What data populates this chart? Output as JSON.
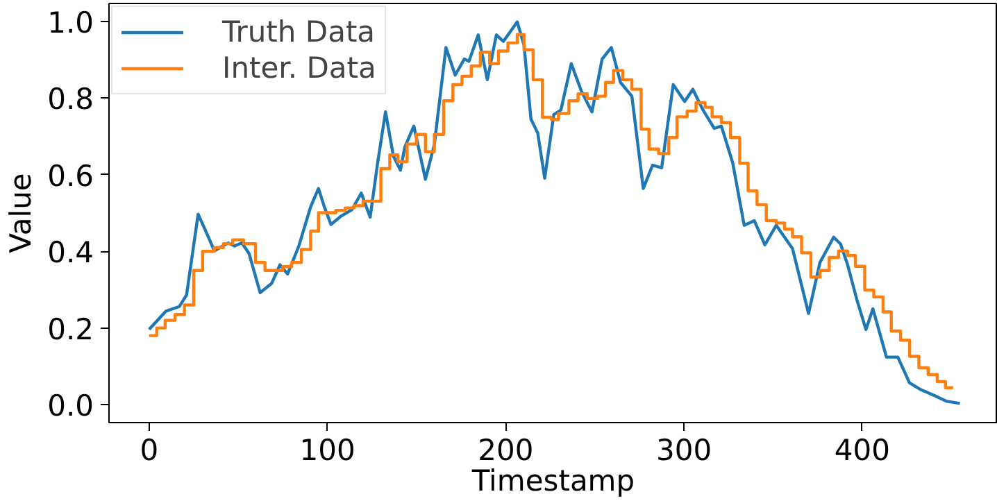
{
  "chart_data": {
    "type": "line",
    "xlabel": "Timestamp",
    "ylabel": "Value",
    "xlim": [
      -22.5,
      476
    ],
    "ylim": [
      -0.047,
      1.047
    ],
    "xticks": [
      0,
      100,
      200,
      300,
      400
    ],
    "yticks": [
      {
        "value": 0,
        "label": "0.0"
      },
      {
        "value": 0.2,
        "label": "0.2"
      },
      {
        "value": 0.4,
        "label": "0.4"
      },
      {
        "value": 0.6,
        "label": "0.6"
      },
      {
        "value": 0.8,
        "label": "0.8"
      },
      {
        "value": 1,
        "label": "1.0"
      }
    ],
    "grid": false,
    "legend": "top left",
    "series": [
      {
        "name": "Truth Data",
        "color": "#1f77b4",
        "x": [
          0,
          9.5,
          17,
          21,
          27.5,
          32.7,
          36.6,
          44.3,
          48,
          52,
          56,
          62.3,
          68.7,
          73.4,
          77.7,
          84,
          90.6,
          95,
          98.3,
          102,
          107.4,
          113.8,
          119,
          124,
          128,
          132.6,
          137,
          141,
          143.4,
          148.5,
          155,
          160,
          166.5,
          171.7,
          176.8,
          179.4,
          184.6,
          189.7,
          194.8,
          198.7,
          206.5,
          210.3,
          214.2,
          218,
          221.9,
          227,
          231,
          236.8,
          242.5,
          248.4,
          254.1,
          259.3,
          264.4,
          270.8,
          277.2,
          282.4,
          287.5,
          294,
          300.4,
          305,
          310.7,
          317,
          321,
          327.4,
          333.8,
          339.5,
          345.4,
          351.8,
          360.9,
          369.9,
          376.3,
          384,
          387.9,
          391.8,
          397,
          402.1,
          406,
          413.6,
          420,
          426.5,
          432.9,
          440.7,
          447.1,
          454.8
        ],
        "values": [
          0.196,
          0.244,
          0.256,
          0.286,
          0.497,
          0.443,
          0.401,
          0.422,
          0.414,
          0.422,
          0.395,
          0.292,
          0.316,
          0.365,
          0.341,
          0.414,
          0.516,
          0.564,
          0.516,
          0.47,
          0.491,
          0.509,
          0.552,
          0.489,
          0.625,
          0.764,
          0.649,
          0.612,
          0.672,
          0.727,
          0.588,
          0.679,
          0.932,
          0.86,
          0.902,
          0.896,
          0.965,
          0.848,
          0.965,
          0.948,
          0.999,
          0.938,
          0.745,
          0.709,
          0.591,
          0.757,
          0.769,
          0.89,
          0.818,
          0.764,
          0.902,
          0.932,
          0.841,
          0.805,
          0.564,
          0.625,
          0.618,
          0.835,
          0.791,
          0.823,
          0.769,
          0.721,
          0.727,
          0.63,
          0.468,
          0.48,
          0.417,
          0.468,
          0.407,
          0.238,
          0.371,
          0.437,
          0.419,
          0.365,
          0.274,
          0.196,
          0.25,
          0.124,
          0.124,
          0.057,
          0.039,
          0.023,
          0.009,
          0.003
        ]
      },
      {
        "name": "Inter. Data",
        "color": "#ff7f0e",
        "type": "step",
        "x": [
          0,
          4.3,
          9,
          14.6,
          19.8,
          25,
          30,
          36.6,
          41.7,
          46.9,
          53,
          59.7,
          65,
          75,
          80,
          85.4,
          90.6,
          95,
          104.8,
          110,
          115,
          120,
          130,
          135,
          139.5,
          144.7,
          150,
          155,
          160,
          165.2,
          170.4,
          175.5,
          180.7,
          185.8,
          191,
          196,
          201.3,
          206.5,
          210.3,
          215.4,
          220.6,
          225.7,
          229.6,
          235.5,
          240.6,
          245.8,
          251.5,
          256,
          260.5,
          265.7,
          270.8,
          276,
          280.4,
          285.8,
          291.5,
          296.1,
          301.8,
          306.8,
          311.9,
          315.8,
          321,
          326.1,
          331.3,
          336,
          341,
          346.2,
          351.8,
          356.5,
          360.9,
          366,
          371.2,
          376.3,
          381.5,
          386.7,
          391.8,
          396.2,
          401.4,
          406.5,
          411.7,
          416.3,
          421.5,
          426.6,
          431.8,
          437,
          442.1,
          446.7,
          451
        ],
        "values": [
          0.18,
          0.2,
          0.22,
          0.235,
          0.26,
          0.35,
          0.4,
          0.41,
          0.42,
          0.43,
          0.42,
          0.371,
          0.35,
          0.36,
          0.371,
          0.405,
          0.453,
          0.501,
          0.507,
          0.513,
          0.519,
          0.531,
          0.616,
          0.652,
          0.634,
          0.68,
          0.705,
          0.66,
          0.705,
          0.793,
          0.835,
          0.857,
          0.884,
          0.92,
          0.89,
          0.923,
          0.944,
          0.966,
          0.926,
          0.848,
          0.75,
          0.744,
          0.76,
          0.793,
          0.811,
          0.799,
          0.805,
          0.841,
          0.872,
          0.848,
          0.823,
          0.719,
          0.667,
          0.655,
          0.697,
          0.751,
          0.766,
          0.788,
          0.776,
          0.751,
          0.736,
          0.697,
          0.63,
          0.558,
          0.522,
          0.48,
          0.474,
          0.458,
          0.438,
          0.396,
          0.333,
          0.35,
          0.384,
          0.401,
          0.389,
          0.361,
          0.299,
          0.281,
          0.242,
          0.192,
          0.168,
          0.126,
          0.096,
          0.078,
          0.06,
          0.044,
          0.044
        ]
      }
    ]
  }
}
